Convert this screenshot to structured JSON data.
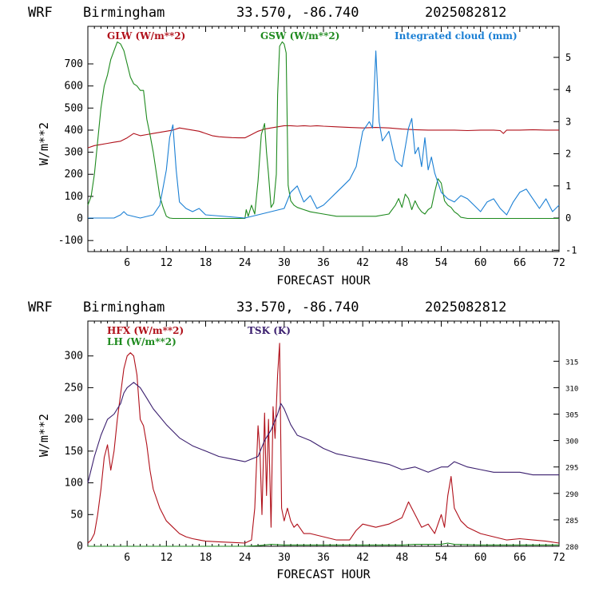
{
  "chart_data": [
    {
      "type": "line",
      "header": {
        "model": "WRF",
        "city": "Birmingham",
        "coords": "33.570, -86.740",
        "run": "2025082812"
      },
      "xlabel": "FORECAST HOUR",
      "ylabel": "W/m**2",
      "xlim": [
        0,
        72
      ],
      "xticks": [
        6,
        12,
        18,
        24,
        30,
        36,
        42,
        48,
        54,
        60,
        66,
        72
      ],
      "ylim": [
        -150,
        870
      ],
      "yticks": [
        -100,
        0,
        100,
        200,
        300,
        400,
        500,
        600,
        700
      ],
      "y2lim": [
        -1.043,
        5.965
      ],
      "y2ticks": [
        -1,
        0,
        1,
        2,
        3,
        4,
        5
      ],
      "grid": false,
      "series": [
        {
          "name": "GLW (W/m**2)",
          "axis": "left",
          "color": "#b0101a",
          "x": [
            0,
            1,
            2,
            3,
            4,
            5,
            6,
            7,
            8,
            9,
            10,
            11,
            12,
            13,
            14,
            15,
            16,
            17,
            18,
            19,
            20,
            21,
            22,
            23,
            24,
            25,
            26,
            27,
            28,
            29,
            30,
            31,
            32,
            33,
            34,
            35,
            36,
            38,
            40,
            42,
            44,
            46,
            48,
            50,
            52,
            54,
            56,
            58,
            60,
            62,
            63,
            63.5,
            64,
            66,
            68,
            70,
            72
          ],
          "y": [
            320,
            330,
            335,
            340,
            345,
            350,
            365,
            385,
            375,
            380,
            385,
            390,
            395,
            400,
            410,
            405,
            400,
            395,
            385,
            375,
            370,
            368,
            366,
            365,
            365,
            380,
            395,
            405,
            410,
            415,
            420,
            420,
            418,
            420,
            418,
            420,
            418,
            415,
            412,
            410,
            412,
            410,
            405,
            402,
            400,
            400,
            400,
            398,
            400,
            400,
            398,
            385,
            400,
            400,
            402,
            400,
            400
          ]
        },
        {
          "name": "GSW (W/m**2)",
          "axis": "left",
          "color": "#1e8a1e",
          "x": [
            0,
            0.5,
            1,
            1.5,
            2,
            2.5,
            3,
            3.5,
            4,
            4.5,
            5,
            5.5,
            6,
            6.5,
            7,
            7.5,
            8,
            8.5,
            9,
            9.5,
            10,
            10.5,
            11,
            11.5,
            12,
            12.5,
            13,
            24,
            24.2,
            24.5,
            25,
            25.5,
            26,
            26.5,
            27,
            27.3,
            27.6,
            28,
            28.4,
            28.8,
            29,
            29.3,
            29.7,
            30,
            30.3,
            30.6,
            31,
            31.5,
            32,
            33,
            34,
            36,
            38,
            40,
            42,
            44,
            46,
            47,
            47.5,
            48,
            48.5,
            49,
            49.5,
            50,
            50.5,
            51,
            51.5,
            52,
            52.5,
            53,
            53.5,
            54,
            54.5,
            55,
            55.5,
            56,
            56.5,
            57,
            58,
            60,
            62,
            64,
            66,
            68,
            70,
            72
          ],
          "y": [
            60,
            100,
            200,
            350,
            500,
            600,
            650,
            720,
            760,
            800,
            790,
            760,
            700,
            640,
            610,
            600,
            580,
            580,
            450,
            380,
            300,
            200,
            100,
            50,
            10,
            2,
            0,
            0,
            40,
            10,
            60,
            20,
            170,
            380,
            430,
            300,
            200,
            50,
            70,
            200,
            560,
            780,
            800,
            790,
            750,
            150,
            80,
            60,
            50,
            40,
            30,
            20,
            10,
            10,
            10,
            10,
            20,
            60,
            90,
            50,
            110,
            90,
            40,
            80,
            50,
            30,
            20,
            40,
            50,
            120,
            180,
            160,
            80,
            60,
            50,
            30,
            20,
            5,
            0,
            0,
            0,
            0,
            0,
            0,
            0,
            0
          ]
        },
        {
          "name": "Integrated cloud (mm)",
          "axis": "right",
          "color": "#1a7fd4",
          "x": [
            0,
            4,
            5,
            5.5,
            6,
            8,
            10,
            11,
            12,
            12.5,
            13,
            13.5,
            14,
            15,
            16,
            17,
            18,
            24,
            26,
            28,
            30,
            31,
            32,
            33,
            34,
            35,
            36,
            37,
            38,
            39,
            40,
            41,
            42,
            43,
            43.5,
            44,
            44.5,
            45,
            46,
            47,
            48,
            49,
            49.5,
            50,
            50.5,
            51,
            51.5,
            52,
            52.5,
            53,
            54,
            55,
            56,
            57,
            58,
            59,
            60,
            61,
            62,
            63,
            64,
            65,
            66,
            67,
            68,
            69,
            70,
            71,
            72
          ],
          "y": [
            0,
            0,
            0.1,
            0.2,
            0.1,
            0,
            0.1,
            0.4,
            1.5,
            2.5,
            2.9,
            1.5,
            0.5,
            0.3,
            0.2,
            0.3,
            0.1,
            0,
            0.1,
            0.2,
            0.3,
            0.8,
            1.0,
            0.5,
            0.7,
            0.3,
            0.4,
            0.6,
            0.8,
            1.0,
            1.2,
            1.6,
            2.7,
            3.0,
            2.8,
            5.2,
            3.0,
            2.4,
            2.7,
            1.8,
            1.6,
            2.8,
            3.1,
            2.0,
            2.2,
            1.6,
            2.5,
            1.5,
            1.9,
            1.4,
            0.8,
            0.6,
            0.5,
            0.7,
            0.6,
            0.4,
            0.2,
            0.5,
            0.6,
            0.3,
            0.1,
            0.5,
            0.8,
            0.9,
            0.6,
            0.3,
            0.6,
            0.2,
            0.4
          ]
        }
      ]
    },
    {
      "type": "line",
      "header": {
        "model": "WRF",
        "city": "Birmingham",
        "coords": "33.570, -86.740",
        "run": "2025082812"
      },
      "xlabel": "FORECAST HOUR",
      "ylabel": "W/m**2",
      "xlim": [
        0,
        72
      ],
      "xticks": [
        6,
        12,
        18,
        24,
        30,
        36,
        42,
        48,
        54,
        60,
        66,
        72
      ],
      "ylim": [
        0,
        355
      ],
      "yticks": [
        0,
        50,
        100,
        150,
        200,
        250,
        300
      ],
      "y2lim": [
        280,
        322.6
      ],
      "y2ticks": [
        280,
        285,
        290,
        295,
        300,
        305,
        310,
        315
      ],
      "grid": false,
      "series": [
        {
          "name": "HFX (W/m**2)",
          "axis": "left",
          "color": "#b0101a",
          "x": [
            0,
            0.5,
            1,
            1.5,
            2,
            2.5,
            3,
            3.5,
            4,
            4.5,
            5,
            5.5,
            6,
            6.5,
            7,
            7.5,
            8,
            8.5,
            9,
            9.5,
            10,
            11,
            12,
            13,
            14,
            15,
            16,
            17,
            18,
            20,
            22,
            24,
            25,
            25.5,
            26,
            26.3,
            26.6,
            27,
            27.3,
            27.6,
            28,
            28.3,
            28.6,
            29,
            29.3,
            29.6,
            30,
            30.5,
            31,
            31.5,
            32,
            33,
            34,
            36,
            38,
            40,
            41,
            42,
            44,
            46,
            48,
            49,
            50,
            51,
            52,
            53,
            54,
            54.5,
            55,
            55.5,
            56,
            57,
            58,
            60,
            62,
            64,
            66,
            68,
            70,
            72
          ],
          "y": [
            5,
            10,
            20,
            50,
            90,
            140,
            160,
            120,
            150,
            200,
            240,
            280,
            300,
            305,
            300,
            270,
            200,
            190,
            160,
            120,
            90,
            60,
            40,
            30,
            20,
            15,
            12,
            10,
            8,
            7,
            6,
            5,
            10,
            60,
            190,
            150,
            50,
            210,
            80,
            200,
            30,
            220,
            170,
            270,
            320,
            60,
            40,
            60,
            40,
            30,
            35,
            20,
            20,
            15,
            10,
            10,
            25,
            35,
            30,
            35,
            45,
            70,
            50,
            30,
            35,
            20,
            50,
            30,
            80,
            110,
            60,
            40,
            30,
            20,
            15,
            10,
            12,
            10,
            8,
            5
          ]
        },
        {
          "name": "LH  (W/m**2)",
          "axis": "left",
          "color": "#1e8a1e",
          "x": [
            0,
            6,
            12,
            18,
            24,
            26,
            27,
            28,
            30,
            36,
            42,
            48,
            50,
            54,
            55,
            56,
            60,
            66,
            72
          ],
          "y": [
            0,
            0,
            0,
            0,
            0,
            1,
            2,
            3,
            2,
            2,
            2,
            2,
            3,
            3,
            5,
            3,
            2,
            2,
            2
          ]
        },
        {
          "name": "TSK (K)",
          "axis": "right",
          "color": "#3a1e6e",
          "x": [
            0,
            1,
            2,
            3,
            4,
            5,
            5.5,
            6,
            7,
            8,
            9,
            10,
            12,
            14,
            16,
            18,
            20,
            22,
            24,
            26,
            27,
            28,
            29,
            29.5,
            30,
            31,
            32,
            34,
            36,
            38,
            40,
            42,
            44,
            46,
            48,
            50,
            52,
            54,
            55,
            56,
            58,
            60,
            62,
            64,
            66,
            68,
            70,
            72
          ],
          "y": [
            292,
            297,
            301,
            304,
            305,
            307,
            309,
            310,
            311,
            310,
            308,
            306,
            303,
            300.5,
            299,
            298,
            297,
            296.5,
            296,
            297,
            300,
            302,
            305,
            307,
            306,
            303,
            301,
            300,
            298.5,
            297.5,
            297,
            296.5,
            296,
            295.5,
            294.5,
            295,
            294,
            295,
            295,
            296,
            295,
            294.5,
            294,
            294,
            294,
            293.5,
            293.5,
            293.5
          ]
        }
      ]
    }
  ]
}
